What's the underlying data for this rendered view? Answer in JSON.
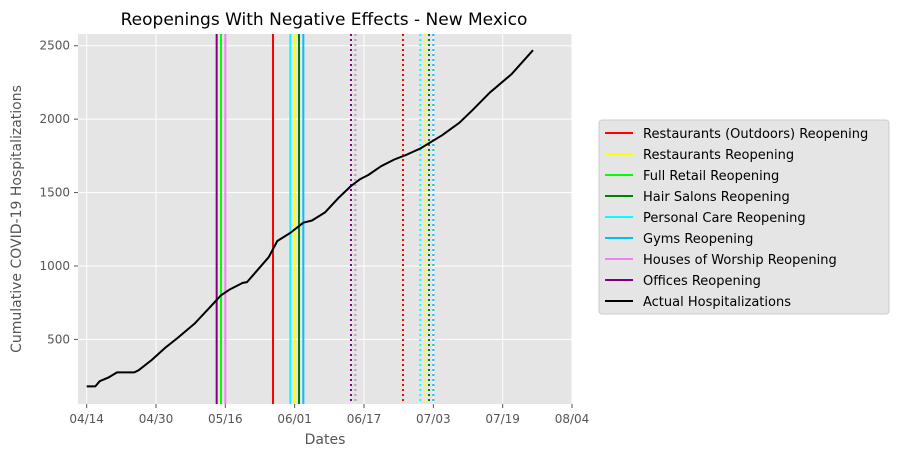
{
  "chart_data": {
    "type": "line",
    "title": "Reopenings With Negative Effects - New Mexico",
    "xlabel": "Dates",
    "ylabel": "Cumulative COVID-19 Hospitalizations",
    "x_tick_labels": [
      "04/14",
      "04/30",
      "05/16",
      "06/01",
      "06/17",
      "07/03",
      "07/19",
      "08/04"
    ],
    "x_ticks": [
      "2020-04-14",
      "2020-04-30",
      "2020-05-16",
      "2020-06-01",
      "2020-06-17",
      "2020-07-03",
      "2020-07-19",
      "2020-08-04"
    ],
    "xlim": [
      "2020-04-12",
      "2020-08-04"
    ],
    "y_ticks": [
      500,
      1000,
      1500,
      2000,
      2500
    ],
    "ylim": [
      60,
      2580
    ],
    "grid": true,
    "legend_position": "right",
    "series": [
      {
        "name": "Actual Hospitalizations",
        "color": "#000000",
        "points": [
          [
            "2020-04-14",
            180
          ],
          [
            "2020-04-16",
            180
          ],
          [
            "2020-04-17",
            215
          ],
          [
            "2020-04-19",
            240
          ],
          [
            "2020-04-21",
            275
          ],
          [
            "2020-04-25",
            275
          ],
          [
            "2020-04-26",
            290
          ],
          [
            "2020-04-29",
            360
          ],
          [
            "2020-05-02",
            440
          ],
          [
            "2020-05-05",
            510
          ],
          [
            "2020-05-09",
            610
          ],
          [
            "2020-05-12",
            705
          ],
          [
            "2020-05-15",
            800
          ],
          [
            "2020-05-17",
            840
          ],
          [
            "2020-05-20",
            885
          ],
          [
            "2020-05-21",
            890
          ],
          [
            "2020-05-26",
            1060
          ],
          [
            "2020-05-28",
            1170
          ],
          [
            "2020-05-31",
            1225
          ],
          [
            "2020-06-03",
            1295
          ],
          [
            "2020-06-05",
            1310
          ],
          [
            "2020-06-08",
            1365
          ],
          [
            "2020-06-11",
            1460
          ],
          [
            "2020-06-14",
            1545
          ],
          [
            "2020-06-16",
            1590
          ],
          [
            "2020-06-18",
            1620
          ],
          [
            "2020-06-21",
            1680
          ],
          [
            "2020-06-24",
            1725
          ],
          [
            "2020-06-27",
            1760
          ],
          [
            "2020-06-30",
            1800
          ],
          [
            "2020-07-05",
            1890
          ],
          [
            "2020-07-09",
            1975
          ],
          [
            "2020-07-12",
            2060
          ],
          [
            "2020-07-16",
            2180
          ],
          [
            "2020-07-21",
            2305
          ],
          [
            "2020-07-26",
            2470
          ]
        ]
      }
    ],
    "reopening_lines": [
      {
        "name": "Restaurants (Outdoors) Reopening",
        "color": "#ff0000",
        "date": "2020-05-27",
        "style": "solid"
      },
      {
        "name": "Restaurants Reopening",
        "color": "#ffff00",
        "date": "2020-06-01",
        "style": "solid"
      },
      {
        "name": "Full Retail Reopening",
        "color": "#00ff00",
        "date": "2020-05-15",
        "style": "solid"
      },
      {
        "name": "Full Retail Reopening",
        "color": "#00ff00",
        "date": "2020-06-02",
        "style": "solid"
      },
      {
        "name": "Hair Salons Reopening",
        "color": "#008000",
        "date": "2020-06-02",
        "style": "solid"
      },
      {
        "name": "Personal Care Reopening",
        "color": "#00ffff",
        "date": "2020-05-31",
        "style": "solid"
      },
      {
        "name": "Gyms Reopening",
        "color": "#00bfff",
        "date": "2020-06-03",
        "style": "solid"
      },
      {
        "name": "Houses of Worship Reopening",
        "color": "#ee82ee",
        "date": "2020-05-16",
        "style": "solid"
      },
      {
        "name": "Offices Reopening",
        "color": "#800080",
        "date": "2020-05-14",
        "style": "solid"
      },
      {
        "name": "Restaurants (Outdoors) Reopening",
        "color": "#ff0000",
        "date": "2020-06-26",
        "style": "dotted"
      },
      {
        "name": "Restaurants Reopening",
        "color": "#ffff00",
        "date": "2020-07-01",
        "style": "dotted"
      },
      {
        "name": "Full Retail Reopening",
        "color": "#00ff00",
        "date": "2020-06-15",
        "style": "dotted"
      },
      {
        "name": "Full Retail Reopening",
        "color": "#00ff00",
        "date": "2020-07-02",
        "style": "dotted"
      },
      {
        "name": "Hair Salons Reopening",
        "color": "#008000",
        "date": "2020-07-02",
        "style": "dotted"
      },
      {
        "name": "Personal Care Reopening",
        "color": "#00ffff",
        "date": "2020-06-30",
        "style": "dotted"
      },
      {
        "name": "Gyms Reopening",
        "color": "#00bfff",
        "date": "2020-07-03",
        "style": "dotted"
      },
      {
        "name": "Houses of Worship Reopening",
        "color": "#ee82ee",
        "date": "2020-06-15",
        "style": "dotted"
      },
      {
        "name": "Offices Reopening",
        "color": "#800080",
        "date": "2020-06-14",
        "style": "dotted"
      }
    ],
    "legend": [
      {
        "label": "Restaurants (Outdoors) Reopening",
        "color": "#ff0000"
      },
      {
        "label": "Restaurants Reopening",
        "color": "#ffff00"
      },
      {
        "label": "Full Retail Reopening",
        "color": "#00ff00"
      },
      {
        "label": "Hair Salons Reopening",
        "color": "#008000"
      },
      {
        "label": "Personal Care Reopening",
        "color": "#00ffff"
      },
      {
        "label": "Gyms Reopening",
        "color": "#00bfff"
      },
      {
        "label": "Houses of Worship Reopening",
        "color": "#ee82ee"
      },
      {
        "label": "Offices Reopening",
        "color": "#800080"
      },
      {
        "label": "Actual Hospitalizations",
        "color": "#000000"
      }
    ]
  }
}
